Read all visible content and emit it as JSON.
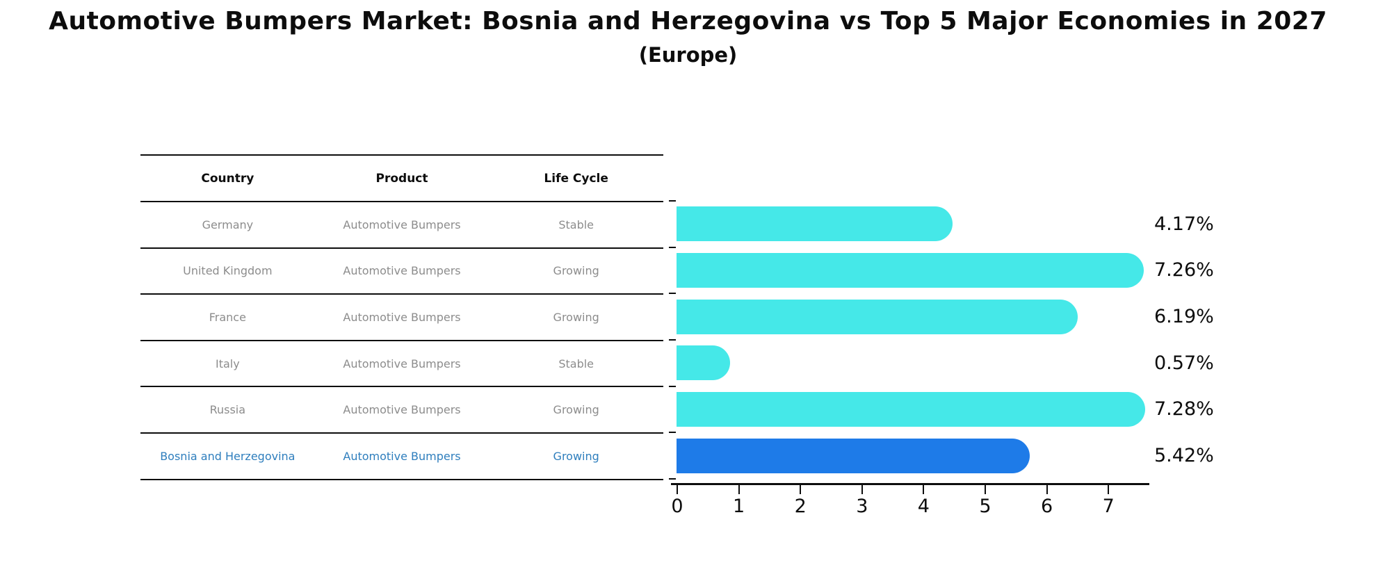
{
  "title": "Automotive Bumpers Market: Bosnia and Herzegovina vs Top 5 Major Economies in 2027",
  "subtitle": "(Europe)",
  "table": {
    "headers": [
      "Country",
      "Product",
      "Life Cycle"
    ],
    "rows": [
      {
        "country": "Germany",
        "product": "Automotive Bumpers",
        "life_cycle": "Stable",
        "highlight": false
      },
      {
        "country": "United Kingdom",
        "product": "Automotive Bumpers",
        "life_cycle": "Growing",
        "highlight": false
      },
      {
        "country": "France",
        "product": "Automotive Bumpers",
        "life_cycle": "Growing",
        "highlight": false
      },
      {
        "country": "Italy",
        "product": "Automotive Bumpers",
        "life_cycle": "Stable",
        "highlight": false
      },
      {
        "country": "Russia",
        "product": "Automotive Bumpers",
        "life_cycle": "Growing",
        "highlight": false
      },
      {
        "country": "Bosnia and Herzegovina",
        "product": "Automotive Bumpers",
        "life_cycle": "Growing",
        "highlight": true
      }
    ]
  },
  "chart_data": {
    "type": "bar",
    "orientation": "horizontal",
    "title": "Automotive Bumpers Market: Bosnia and Herzegovina vs Top 5 Major Economies in 2027 (Europe)",
    "categories": [
      "Germany",
      "United Kingdom",
      "France",
      "Italy",
      "Russia",
      "Bosnia and Herzegovina"
    ],
    "values": [
      4.17,
      7.26,
      6.19,
      0.57,
      7.28,
      5.42
    ],
    "value_labels": [
      "4.17%",
      "7.26%",
      "6.19%",
      "0.57%",
      "7.28%",
      "5.42%"
    ],
    "highlight_index": 5,
    "xlabel": "",
    "ylabel": "",
    "xlim": [
      0,
      7.6
    ],
    "x_ticks": [
      "0",
      "1",
      "2",
      "3",
      "4",
      "5",
      "6",
      "7"
    ],
    "grid": false,
    "legend": false
  },
  "colors": {
    "bar_default": "#45e8e8",
    "bar_highlight": "#1e7be8",
    "highlight_text": "#2e7ebd",
    "table_text": "#8c8c8c",
    "header_text": "#0d0d0d",
    "axis": "#0d0d0d"
  }
}
